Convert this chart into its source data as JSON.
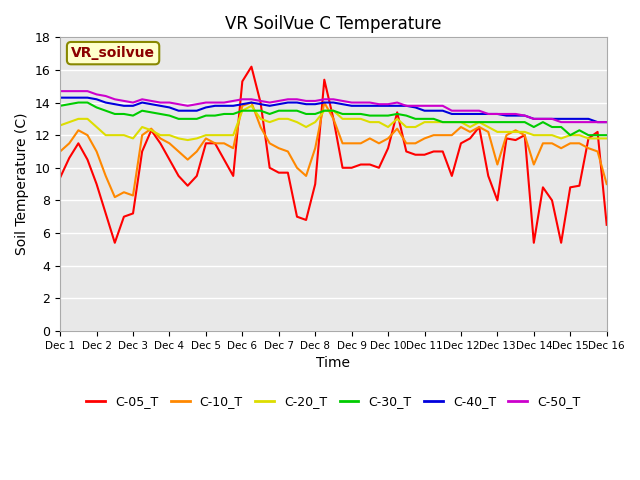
{
  "title": "VR SoilVue C Temperature",
  "xlabel": "Time",
  "ylabel": "Soil Temperature (C)",
  "xlim": [
    0,
    15
  ],
  "ylim": [
    0,
    18
  ],
  "yticks": [
    0,
    2,
    4,
    6,
    8,
    10,
    12,
    14,
    16,
    18
  ],
  "xtick_labels": [
    "Dec 1",
    "Dec 2",
    "Dec 3",
    "Dec 4",
    "Dec 5",
    "Dec 6",
    "Dec 7",
    "Dec 8",
    "Dec 9",
    "Dec 10",
    "Dec 11",
    "Dec 12",
    "Dec 13",
    "Dec 14",
    "Dec 15",
    "Dec 16"
  ],
  "watermark_text": "VR_soilvue",
  "background_color": "#ffffff",
  "plot_bg_color": "#e8e8e8",
  "grid_color": "#ffffff",
  "series": {
    "C-05_T": {
      "color": "#ff0000",
      "x": [
        0,
        0.25,
        0.5,
        0.75,
        1.0,
        1.25,
        1.5,
        1.75,
        2.0,
        2.25,
        2.5,
        2.75,
        3.0,
        3.25,
        3.5,
        3.75,
        4.0,
        4.25,
        4.5,
        4.75,
        5.0,
        5.25,
        5.5,
        5.75,
        6.0,
        6.25,
        6.5,
        6.75,
        7.0,
        7.25,
        7.5,
        7.75,
        8.0,
        8.25,
        8.5,
        8.75,
        9.0,
        9.25,
        9.5,
        9.75,
        10.0,
        10.25,
        10.5,
        10.75,
        11.0,
        11.25,
        11.5,
        11.75,
        12.0,
        12.25,
        12.5,
        12.75,
        13.0,
        13.25,
        13.5,
        13.75,
        14.0,
        14.25,
        14.5,
        14.75,
        15.0
      ],
      "y": [
        9.4,
        10.6,
        11.5,
        10.5,
        9.0,
        7.2,
        5.4,
        7.0,
        7.2,
        11.0,
        12.3,
        11.5,
        10.5,
        9.5,
        8.9,
        9.5,
        11.5,
        11.5,
        10.5,
        9.5,
        15.3,
        16.2,
        14.0,
        10.0,
        9.7,
        9.7,
        7.0,
        6.8,
        9.0,
        15.4,
        13.0,
        10.0,
        10.0,
        10.2,
        10.2,
        10.0,
        11.2,
        13.4,
        11.0,
        10.8,
        10.8,
        11.0,
        11.0,
        9.5,
        11.5,
        11.8,
        12.5,
        9.5,
        8.0,
        11.8,
        11.7,
        12.0,
        5.4,
        8.8,
        8.0,
        5.4,
        8.8,
        8.9,
        11.8,
        12.2,
        6.5
      ]
    },
    "C-10_T": {
      "color": "#ff8800",
      "x": [
        0,
        0.25,
        0.5,
        0.75,
        1.0,
        1.25,
        1.5,
        1.75,
        2.0,
        2.25,
        2.5,
        2.75,
        3.0,
        3.25,
        3.5,
        3.75,
        4.0,
        4.25,
        4.5,
        4.75,
        5.0,
        5.25,
        5.5,
        5.75,
        6.0,
        6.25,
        6.5,
        6.75,
        7.0,
        7.25,
        7.5,
        7.75,
        8.0,
        8.25,
        8.5,
        8.75,
        9.0,
        9.25,
        9.5,
        9.75,
        10.0,
        10.25,
        10.5,
        10.75,
        11.0,
        11.25,
        11.5,
        11.75,
        12.0,
        12.25,
        12.5,
        12.75,
        13.0,
        13.25,
        13.5,
        13.75,
        14.0,
        14.25,
        14.5,
        14.75,
        15.0
      ],
      "y": [
        11.0,
        11.5,
        12.3,
        12.0,
        11.0,
        9.5,
        8.2,
        8.5,
        8.3,
        12.0,
        12.4,
        11.8,
        11.5,
        11.0,
        10.5,
        11.0,
        11.8,
        11.5,
        11.5,
        11.2,
        13.8,
        14.0,
        12.5,
        11.5,
        11.2,
        11.0,
        10.0,
        9.5,
        11.2,
        14.0,
        13.0,
        11.5,
        11.5,
        11.5,
        11.8,
        11.5,
        11.8,
        12.4,
        11.5,
        11.5,
        11.8,
        12.0,
        12.0,
        12.0,
        12.5,
        12.2,
        12.5,
        12.2,
        10.2,
        12.0,
        12.3,
        12.0,
        10.2,
        11.5,
        11.5,
        11.2,
        11.5,
        11.5,
        11.2,
        11.0,
        9.0
      ]
    },
    "C-20_T": {
      "color": "#dddd00",
      "x": [
        0,
        0.25,
        0.5,
        0.75,
        1.0,
        1.25,
        1.5,
        1.75,
        2.0,
        2.25,
        2.5,
        2.75,
        3.0,
        3.25,
        3.5,
        3.75,
        4.0,
        4.25,
        4.5,
        4.75,
        5.0,
        5.25,
        5.5,
        5.75,
        6.0,
        6.25,
        6.5,
        6.75,
        7.0,
        7.25,
        7.5,
        7.75,
        8.0,
        8.25,
        8.5,
        8.75,
        9.0,
        9.25,
        9.5,
        9.75,
        10.0,
        10.25,
        10.5,
        10.75,
        11.0,
        11.25,
        11.5,
        11.75,
        12.0,
        12.25,
        12.5,
        12.75,
        13.0,
        13.25,
        13.5,
        13.75,
        14.0,
        14.25,
        14.5,
        14.75,
        15.0
      ],
      "y": [
        12.6,
        12.8,
        13.0,
        13.0,
        12.5,
        12.0,
        12.0,
        12.0,
        11.8,
        12.5,
        12.3,
        12.0,
        12.0,
        11.8,
        11.7,
        11.8,
        12.0,
        12.0,
        12.0,
        12.0,
        13.5,
        13.8,
        13.0,
        12.8,
        13.0,
        13.0,
        12.8,
        12.5,
        12.8,
        13.5,
        13.5,
        13.0,
        13.0,
        13.0,
        12.8,
        12.8,
        12.5,
        13.0,
        12.5,
        12.5,
        12.8,
        12.8,
        12.8,
        12.8,
        12.8,
        12.5,
        12.8,
        12.5,
        12.2,
        12.2,
        12.2,
        12.2,
        12.0,
        12.0,
        12.0,
        11.8,
        12.0,
        12.0,
        11.8,
        11.8,
        11.8
      ]
    },
    "C-30_T": {
      "color": "#00cc00",
      "x": [
        0,
        0.25,
        0.5,
        0.75,
        1.0,
        1.25,
        1.5,
        1.75,
        2.0,
        2.25,
        2.5,
        2.75,
        3.0,
        3.25,
        3.5,
        3.75,
        4.0,
        4.25,
        4.5,
        4.75,
        5.0,
        5.25,
        5.5,
        5.75,
        6.0,
        6.25,
        6.5,
        6.75,
        7.0,
        7.25,
        7.5,
        7.75,
        8.0,
        8.25,
        8.5,
        8.75,
        9.0,
        9.25,
        9.5,
        9.75,
        10.0,
        10.25,
        10.5,
        10.75,
        11.0,
        11.25,
        11.5,
        11.75,
        12.0,
        12.25,
        12.5,
        12.75,
        13.0,
        13.25,
        13.5,
        13.75,
        14.0,
        14.25,
        14.5,
        14.75,
        15.0
      ],
      "y": [
        13.8,
        13.9,
        14.0,
        14.0,
        13.7,
        13.5,
        13.3,
        13.3,
        13.2,
        13.5,
        13.4,
        13.3,
        13.2,
        13.0,
        13.0,
        13.0,
        13.2,
        13.2,
        13.3,
        13.3,
        13.5,
        13.5,
        13.5,
        13.3,
        13.5,
        13.5,
        13.5,
        13.3,
        13.3,
        13.5,
        13.5,
        13.3,
        13.3,
        13.3,
        13.2,
        13.2,
        13.2,
        13.3,
        13.2,
        13.0,
        13.0,
        13.0,
        12.8,
        12.8,
        12.8,
        12.8,
        12.8,
        12.8,
        12.8,
        12.8,
        12.8,
        12.8,
        12.5,
        12.8,
        12.5,
        12.5,
        12.0,
        12.3,
        12.0,
        12.0,
        12.0
      ]
    },
    "C-40_T": {
      "color": "#0000dd",
      "x": [
        0,
        0.25,
        0.5,
        0.75,
        1.0,
        1.25,
        1.5,
        1.75,
        2.0,
        2.25,
        2.5,
        2.75,
        3.0,
        3.25,
        3.5,
        3.75,
        4.0,
        4.25,
        4.5,
        4.75,
        5.0,
        5.25,
        5.5,
        5.75,
        6.0,
        6.25,
        6.5,
        6.75,
        7.0,
        7.25,
        7.5,
        7.75,
        8.0,
        8.25,
        8.5,
        8.75,
        9.0,
        9.25,
        9.5,
        9.75,
        10.0,
        10.25,
        10.5,
        10.75,
        11.0,
        11.25,
        11.5,
        11.75,
        12.0,
        12.25,
        12.5,
        12.75,
        13.0,
        13.25,
        13.5,
        13.75,
        14.0,
        14.25,
        14.5,
        14.75,
        15.0
      ],
      "y": [
        14.3,
        14.3,
        14.3,
        14.3,
        14.2,
        14.0,
        13.9,
        13.8,
        13.8,
        14.0,
        13.9,
        13.8,
        13.7,
        13.5,
        13.5,
        13.5,
        13.7,
        13.8,
        13.8,
        13.8,
        13.9,
        14.0,
        13.9,
        13.8,
        13.9,
        14.0,
        14.0,
        13.9,
        13.9,
        14.0,
        14.0,
        13.9,
        13.8,
        13.8,
        13.8,
        13.8,
        13.8,
        13.8,
        13.8,
        13.7,
        13.5,
        13.5,
        13.5,
        13.3,
        13.3,
        13.3,
        13.3,
        13.3,
        13.3,
        13.2,
        13.2,
        13.2,
        13.0,
        13.0,
        13.0,
        13.0,
        13.0,
        13.0,
        13.0,
        12.8,
        12.8
      ]
    },
    "C-50_T": {
      "color": "#cc00cc",
      "x": [
        0,
        0.25,
        0.5,
        0.75,
        1.0,
        1.25,
        1.5,
        1.75,
        2.0,
        2.25,
        2.5,
        2.75,
        3.0,
        3.25,
        3.5,
        3.75,
        4.0,
        4.25,
        4.5,
        4.75,
        5.0,
        5.25,
        5.5,
        5.75,
        6.0,
        6.25,
        6.5,
        6.75,
        7.0,
        7.25,
        7.5,
        7.75,
        8.0,
        8.25,
        8.5,
        8.75,
        9.0,
        9.25,
        9.5,
        9.75,
        10.0,
        10.25,
        10.5,
        10.75,
        11.0,
        11.25,
        11.5,
        11.75,
        12.0,
        12.25,
        12.5,
        12.75,
        13.0,
        13.25,
        13.5,
        13.75,
        14.0,
        14.25,
        14.5,
        14.75,
        15.0
      ],
      "y": [
        14.7,
        14.7,
        14.7,
        14.7,
        14.5,
        14.4,
        14.2,
        14.1,
        14.0,
        14.2,
        14.1,
        14.0,
        14.0,
        13.9,
        13.8,
        13.9,
        14.0,
        14.0,
        14.0,
        14.1,
        14.2,
        14.2,
        14.1,
        14.0,
        14.1,
        14.2,
        14.2,
        14.1,
        14.1,
        14.2,
        14.2,
        14.1,
        14.0,
        14.0,
        14.0,
        13.9,
        13.9,
        14.0,
        13.8,
        13.8,
        13.8,
        13.8,
        13.8,
        13.5,
        13.5,
        13.5,
        13.5,
        13.3,
        13.3,
        13.3,
        13.3,
        13.2,
        13.0,
        13.0,
        13.0,
        12.8,
        12.8,
        12.8,
        12.8,
        12.8,
        12.8
      ]
    }
  },
  "legend_order": [
    "C-05_T",
    "C-10_T",
    "C-20_T",
    "C-30_T",
    "C-40_T",
    "C-50_T"
  ]
}
